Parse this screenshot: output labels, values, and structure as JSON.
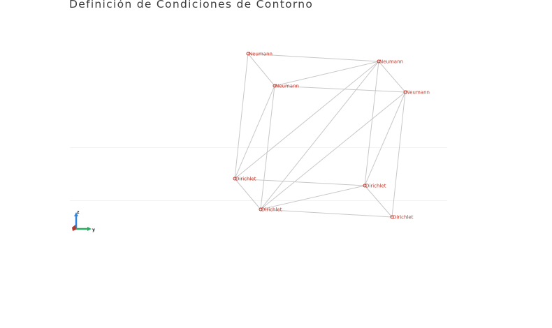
{
  "title": "Definición de Condiciones de Contorno",
  "colors": {
    "edge": "#c8c8c8",
    "label": "#c0392b",
    "node": "#c0392b",
    "axis_z": "#2e86de",
    "axis_y": "#27ae60",
    "axis_x": "#c0392b"
  },
  "nodes": [
    {
      "id": "n0",
      "label": "Neumann"
    },
    {
      "id": "n1",
      "label": "Neumann"
    },
    {
      "id": "n2",
      "label": "Neumann"
    },
    {
      "id": "n3",
      "label": "Neumann"
    },
    {
      "id": "n4",
      "label": "Dirichlet"
    },
    {
      "id": "n5",
      "label": "Dirichlet"
    },
    {
      "id": "n6",
      "label": "Dirichlet"
    },
    {
      "id": "n7",
      "label": "Dirichlet"
    }
  ],
  "axes": {
    "z_label": "z",
    "y_label": "y"
  }
}
